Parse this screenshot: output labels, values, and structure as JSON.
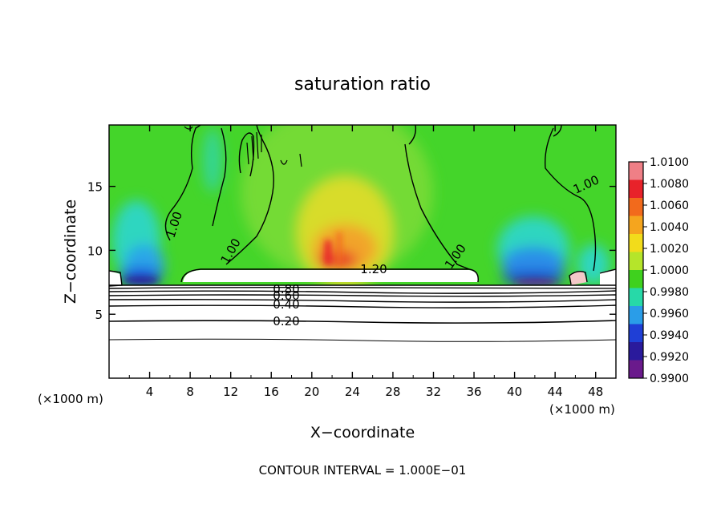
{
  "chart_data": {
    "type": "heatmap",
    "title": "saturation ratio",
    "xlabel": "X−coordinate",
    "ylabel": "Z−coordinate",
    "x_unit_left": "(×1000 m)",
    "x_unit_right": "(×1000 m)",
    "xlim": [
      0,
      50
    ],
    "ylim": [
      0,
      19.8
    ],
    "x_ticks": [
      4,
      8,
      12,
      16,
      20,
      24,
      28,
      32,
      36,
      40,
      44,
      48
    ],
    "y_ticks": [
      5,
      10,
      15
    ],
    "colorbar": {
      "values": [
        "1.0100",
        "1.0080",
        "1.0060",
        "1.0040",
        "1.0020",
        "1.0000",
        "0.9980",
        "0.9960",
        "0.9940",
        "0.9920",
        "0.9900"
      ],
      "colors": [
        "#ef7f86",
        "#e8222a",
        "#f26a1c",
        "#f5a51e",
        "#f2dc1b",
        "#b5e52a",
        "#3fd11e",
        "#27d9a8",
        "#2a9de8",
        "#1f3fd6",
        "#2a1a9c",
        "#6a1a8c"
      ]
    },
    "contour_labels": [
      {
        "text": "1.00",
        "x": 6.7,
        "z": 12.4
      },
      {
        "text": "1.00",
        "x": 12.5,
        "z": 10.5
      },
      {
        "text": "1.00",
        "x": 34.0,
        "z": 9.7
      },
      {
        "text": "1.00",
        "x": 46.5,
        "z": 15.3
      },
      {
        "text": "1.20",
        "x": 26.5,
        "z": 8.6
      },
      {
        "text": "0.80",
        "x": 17.5,
        "z": 7.2
      },
      {
        "text": "0.60",
        "x": 17.5,
        "z": 6.7
      },
      {
        "text": "0.40",
        "x": 17.5,
        "z": 5.9
      },
      {
        "text": "0.20",
        "x": 17.5,
        "z": 4.6
      }
    ],
    "footer": "CONTOUR INTERVAL = 1.000E−01"
  }
}
